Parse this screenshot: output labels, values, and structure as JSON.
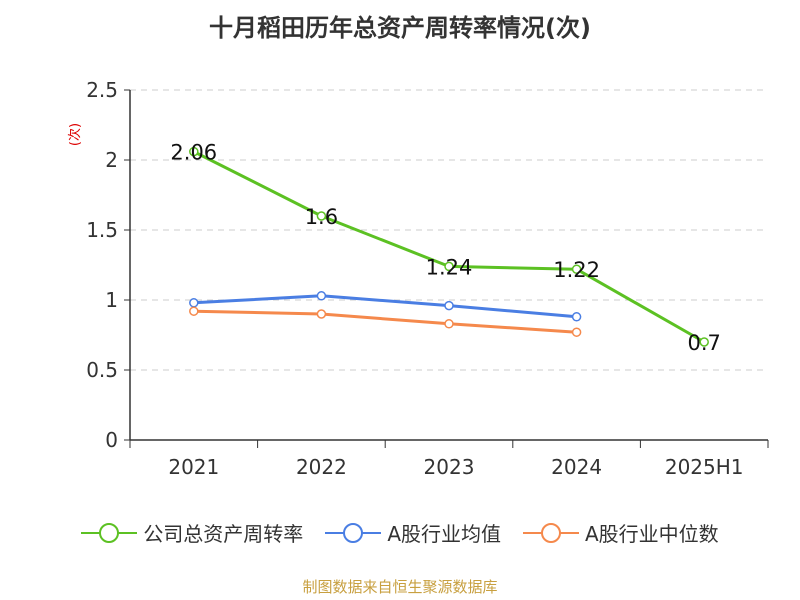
{
  "chart_data": {
    "type": "line",
    "title": "十月稻田历年总资产周转率情况(次)",
    "ylabel": "(次)",
    "xlabel": "",
    "categories": [
      "2021",
      "2022",
      "2023",
      "2024",
      "2025H1"
    ],
    "ylim": [
      0,
      2.5
    ],
    "yticks": [
      "0",
      "0.5",
      "1",
      "1.5",
      "2",
      "2.5"
    ],
    "grid": true,
    "legend_position": "bottom",
    "series": [
      {
        "name": "公司总资产周转率",
        "color": "#5cc123",
        "values": [
          2.06,
          1.6,
          1.24,
          1.22,
          0.7
        ],
        "labels": [
          "2.06",
          "1.6",
          "1.24",
          "1.22",
          "0.7"
        ]
      },
      {
        "name": "A股行业均值",
        "color": "#4a7ee3",
        "values": [
          0.98,
          1.03,
          0.96,
          0.88,
          null
        ]
      },
      {
        "name": "A股行业中位数",
        "color": "#f5894c",
        "values": [
          0.92,
          0.9,
          0.83,
          0.77,
          null
        ]
      }
    ]
  },
  "source": "制图数据来自恒生聚源数据库"
}
